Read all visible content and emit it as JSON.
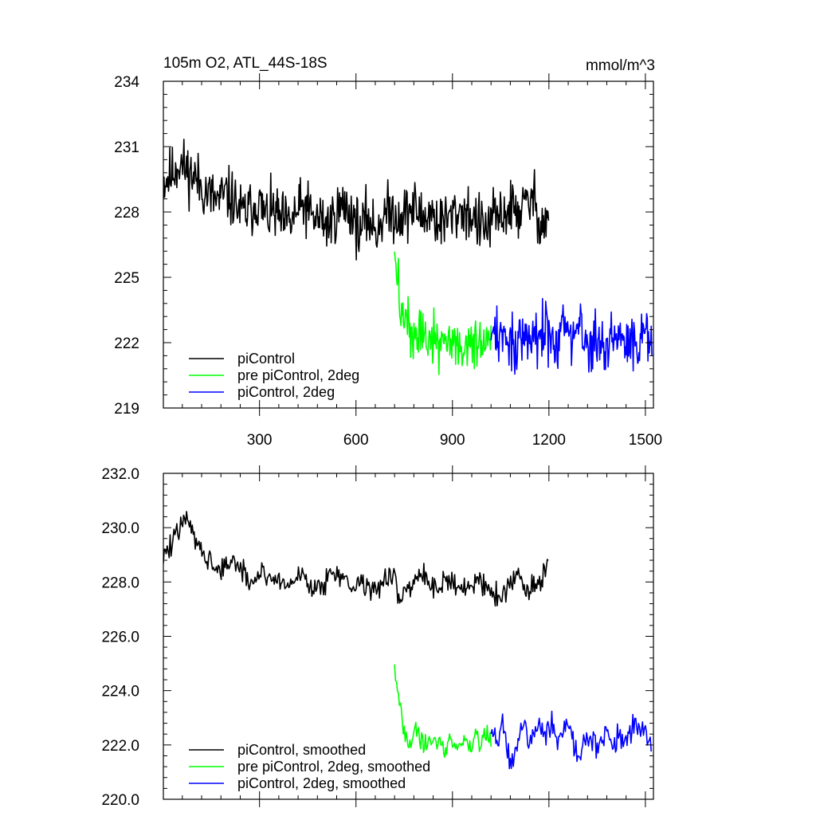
{
  "header": {
    "title": "105m O2, ATL_44S-18S",
    "units": "mmol/m^3"
  },
  "chart_data": [
    {
      "type": "line",
      "title": "105m O2, ATL_44S-18S",
      "units_label": "mmol/m^3",
      "xlim": [
        1,
        1525
      ],
      "ylim": [
        219,
        234
      ],
      "x_ticks": [
        300,
        600,
        900,
        1200,
        1500
      ],
      "x_tick_labels": [
        "300",
        "600",
        "900",
        "1200",
        "1500"
      ],
      "y_ticks": [
        219,
        222,
        225,
        228,
        231,
        234
      ],
      "y_tick_labels": [
        "219",
        "222",
        "225",
        "228",
        "231",
        "234"
      ],
      "legend_position": "bottom-left",
      "series": [
        {
          "name": "piControl",
          "color": "#000000",
          "x_range": [
            1,
            1200
          ],
          "values": [
            229.4,
            229.7,
            230.3,
            229.9,
            229.6,
            229.1,
            228.7,
            228.5,
            228.8,
            228.5,
            227.9,
            228.1,
            228.5,
            227.8,
            228.0,
            227.6,
            227.4,
            228.0,
            228.3,
            227.7,
            227.7,
            227.4,
            228.0,
            228.3,
            227.9,
            227.1,
            227.8,
            227.1,
            227.9,
            228.0,
            227.8,
            228.0,
            228.2,
            227.7,
            228.0,
            227.5,
            227.6,
            227.9,
            228.1,
            227.9,
            227.5,
            227.2,
            227.7,
            227.8,
            228.2,
            228.0,
            228.3,
            228.6,
            227.5,
            227.7
          ],
          "noise_amplitude": 1.0
        },
        {
          "name": "pre piControl, 2deg",
          "color": "#00ff00",
          "x_range": [
            720,
            1020
          ],
          "values": [
            226.5,
            223.8,
            223.0,
            222.6,
            222.3,
            222.4,
            222.3,
            222.0,
            222.2,
            221.9,
            222.0,
            222.1,
            221.8,
            221.9,
            221.7,
            222.1,
            221.9,
            222.0,
            221.8,
            221.9
          ],
          "noise_amplitude": 0.9
        },
        {
          "name": "piControl, 2deg",
          "color": "#0000ff",
          "x_range": [
            1020,
            1520
          ],
          "values": [
            222.0,
            222.3,
            222.1,
            222.6,
            222.2,
            221.7,
            222.2,
            222.5,
            222.2,
            222.4,
            222.7,
            222.2,
            222.0,
            222.4,
            222.3,
            222.1,
            222.6,
            222.2,
            221.8,
            222.1,
            222.3,
            222.0,
            222.5,
            222.2,
            222.4,
            221.9,
            222.2,
            222.4,
            222.6,
            221.8
          ],
          "noise_amplitude": 1.0
        }
      ]
    },
    {
      "type": "line",
      "xlim": [
        1,
        1525
      ],
      "ylim": [
        220,
        232
      ],
      "x_ticks": [
        300,
        600,
        900,
        1200,
        1500
      ],
      "x_tick_labels": [],
      "y_ticks": [
        220,
        222,
        224,
        226,
        228,
        230,
        232
      ],
      "y_tick_labels": [
        "220.0",
        "222.0",
        "224.0",
        "226.0",
        "228.0",
        "230.0",
        "232.0"
      ],
      "legend_position": "bottom-left",
      "series": [
        {
          "name": "piControl, smoothed",
          "color": "#000000",
          "x_range": [
            1,
            1200
          ],
          "values": [
            229.0,
            229.4,
            230.4,
            229.8,
            229.2,
            228.6,
            228.4,
            228.9,
            228.3,
            227.9,
            228.5,
            228.1,
            228.0,
            227.9,
            228.4,
            227.8,
            227.7,
            228.6,
            228.2,
            227.7,
            228.1,
            227.6,
            228.0,
            228.2,
            227.5,
            227.9,
            228.3,
            228.0,
            227.8,
            228.2,
            227.6,
            227.9,
            228.1,
            227.8,
            227.4,
            227.9,
            228.2,
            227.7,
            227.9,
            228.6
          ],
          "noise_amplitude": 0.35
        },
        {
          "name": "pre piControl, 2deg, smoothed",
          "color": "#00ff00",
          "x_range": [
            720,
            1020
          ],
          "values": [
            225.1,
            223.4,
            222.3,
            222.0,
            222.6,
            222.2,
            221.9,
            222.3,
            222.0,
            222.2,
            221.8,
            222.4,
            221.9,
            222.1,
            222.3,
            221.8,
            222.4,
            222.0,
            222.5,
            222.2
          ],
          "noise_amplitude": 0.3
        },
        {
          "name": "piControl, 2deg, smoothed",
          "color": "#0000ff",
          "x_range": [
            1020,
            1520
          ],
          "values": [
            222.4,
            222.0,
            222.8,
            221.8,
            221.4,
            222.3,
            222.7,
            222.1,
            222.9,
            222.6,
            222.3,
            222.8,
            222.0,
            222.5,
            222.9,
            222.1,
            221.6,
            222.2,
            222.4,
            221.9,
            222.2,
            222.6,
            221.8,
            222.3,
            222.0,
            222.4,
            222.9,
            222.5,
            222.2,
            221.6
          ],
          "noise_amplitude": 0.35
        }
      ]
    }
  ]
}
